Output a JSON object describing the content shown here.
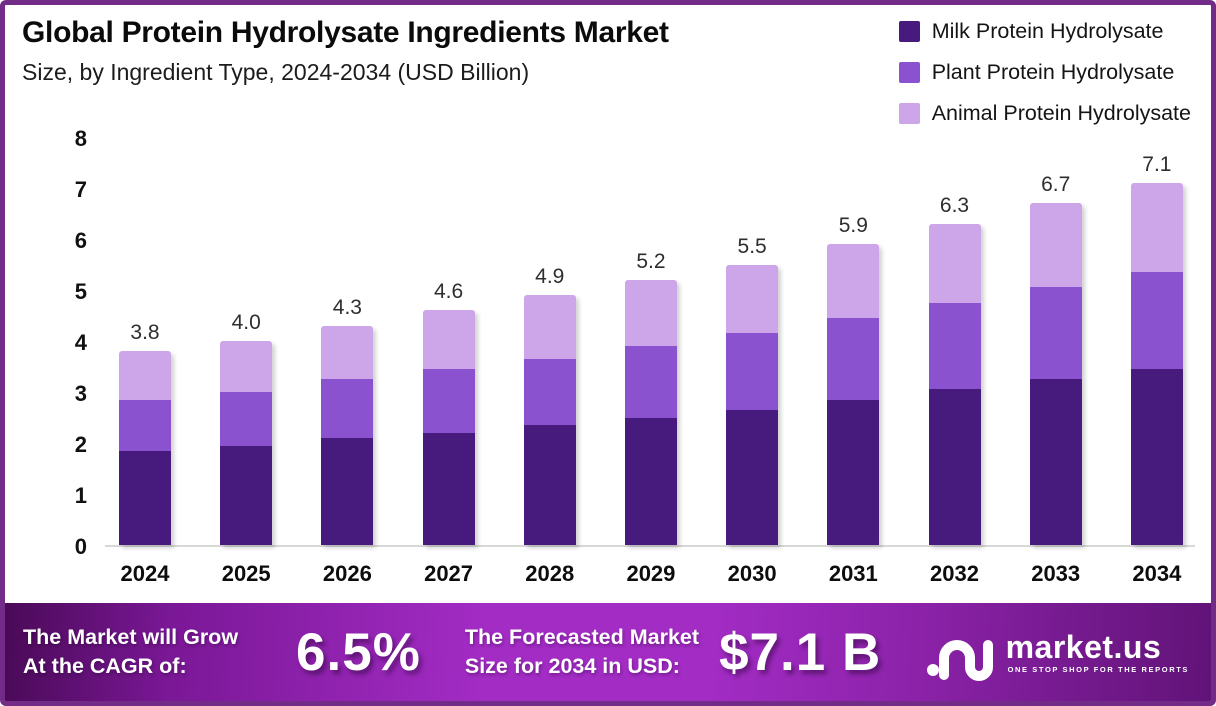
{
  "frame": {
    "border_color": "#722c88",
    "background": "#ffffff"
  },
  "header": {
    "title": "Global Protein Hydrolysate Ingredients Market",
    "subtitle": "Size, by Ingredient Type, 2024-2034 (USD Billion)"
  },
  "legend": [
    {
      "label": "Milk Protein Hydrolysate",
      "color": "#471b7e"
    },
    {
      "label": "Plant Protein Hydrolysate",
      "color": "#8a52cf"
    },
    {
      "label": "Animal Protein Hydrolysate",
      "color": "#cda6e9"
    }
  ],
  "chart_data": {
    "type": "bar",
    "stacked": true,
    "title": "Global Protein Hydrolysate Ingredients Market Size, by Ingredient Type, 2024-2034 (USD Billion)",
    "xlabel": "",
    "ylabel": "USD Billion",
    "ylim": [
      0,
      8
    ],
    "y_ticks": [
      0,
      1,
      2,
      3,
      4,
      5,
      6,
      7,
      8
    ],
    "grid": false,
    "legend_position": "top-right",
    "categories": [
      "2024",
      "2025",
      "2026",
      "2027",
      "2028",
      "2029",
      "2030",
      "2031",
      "2032",
      "2033",
      "2034"
    ],
    "series": [
      {
        "name": "Milk Protein Hydrolysate",
        "color": "#471b7e",
        "values": [
          1.85,
          1.95,
          2.1,
          2.2,
          2.35,
          2.5,
          2.65,
          2.85,
          3.05,
          3.25,
          3.45
        ]
      },
      {
        "name": "Plant Protein Hydrolysate",
        "color": "#8a52cf",
        "values": [
          1.0,
          1.05,
          1.15,
          1.25,
          1.3,
          1.4,
          1.5,
          1.6,
          1.7,
          1.8,
          1.9
        ]
      },
      {
        "name": "Animal Protein Hydrolysate",
        "color": "#cda6e9",
        "values": [
          0.95,
          1.0,
          1.05,
          1.15,
          1.25,
          1.3,
          1.35,
          1.45,
          1.55,
          1.65,
          1.75
        ]
      }
    ],
    "totals": [
      3.8,
      4.0,
      4.3,
      4.6,
      4.9,
      5.2,
      5.5,
      5.9,
      6.3,
      6.7,
      7.1
    ],
    "total_labels": [
      "3.8",
      "4.0",
      "4.3",
      "4.6",
      "4.9",
      "5.2",
      "5.5",
      "5.9",
      "6.3",
      "6.7",
      "7.1"
    ]
  },
  "banner": {
    "cagr_label_line1": "The Market will Grow",
    "cagr_label_line2": "At the CAGR of:",
    "cagr_value": "6.5%",
    "forecast_label_line1": "The Forecasted Market",
    "forecast_label_line2": "Size for 2034 in USD:",
    "forecast_value": "$7.1 B",
    "logo": {
      "name": "market.us",
      "tagline": "ONE STOP SHOP FOR THE REPORTS"
    }
  }
}
